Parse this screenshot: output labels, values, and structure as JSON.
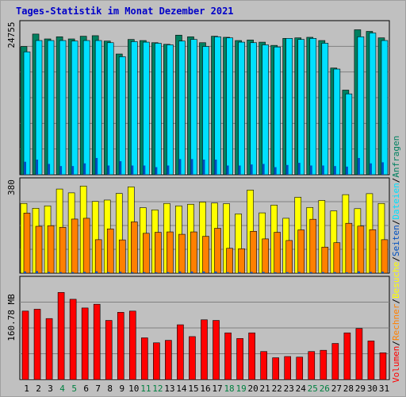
{
  "chart_data": {
    "type": "bar",
    "title": "Tages-Statistik im Monat Dezember 2021",
    "categories": [
      "1",
      "2",
      "3",
      "4",
      "5",
      "6",
      "7",
      "8",
      "9",
      "10",
      "11",
      "12",
      "13",
      "14",
      "15",
      "16",
      "17",
      "18",
      "19",
      "20",
      "21",
      "22",
      "23",
      "24",
      "25",
      "26",
      "27",
      "28",
      "29",
      "30",
      "31"
    ],
    "weekend_days": [
      "4",
      "5",
      "11",
      "12",
      "18",
      "19",
      "25",
      "26"
    ],
    "colors": {
      "background": "#c0c0c0",
      "title": "#0000c8",
      "weekday_label": "#000000",
      "weekend_label": "#008040",
      "anfragen": "#008060",
      "dateien": "#00e0ff",
      "seiten": "#0050c0",
      "besuche": "#ffff00",
      "rechner": "#ff8000",
      "volumen": "#ff0000"
    },
    "panels": [
      {
        "id": "top",
        "max_label": "24755",
        "ymax": 28000,
        "series": [
          {
            "name": "Anfragen",
            "values": [
              23800,
              26100,
              25200,
              25600,
              25200,
              25700,
              25800,
              24800,
              22400,
              25100,
              24900,
              24500,
              24200,
              25900,
              25600,
              24500,
              25700,
              25500,
              24900,
              25000,
              24600,
              24000,
              25300,
              25400,
              25500,
              24900,
              19800,
              15700,
              26900,
              26600,
              25400
            ]
          },
          {
            "name": "Dateien",
            "values": [
              22800,
              24900,
              24900,
              24900,
              24800,
              24900,
              24900,
              24500,
              21900,
              24700,
              24600,
              24400,
              24100,
              24800,
              25100,
              23800,
              25600,
              25400,
              24600,
              24500,
              24100,
              23700,
              25300,
              25100,
              25300,
              24400,
              19600,
              15000,
              25600,
              26300,
              24900
            ]
          },
          {
            "name": "Seiten",
            "values": [
              2400,
              2800,
              2000,
              1600,
              1600,
              2100,
              3100,
              1700,
              2500,
              1700,
              1700,
              1400,
              1700,
              2900,
              2900,
              2800,
              2800,
              1700,
              1700,
              1900,
              2000,
              1400,
              1800,
              2200,
              1700,
              1700,
              1600,
              1500,
              3100,
              2100,
              2300
            ]
          }
        ]
      },
      {
        "id": "mid",
        "max_label": "380",
        "ymax": 460,
        "series": [
          {
            "name": "Besuche",
            "values": [
              348,
              324,
              336,
              420,
              401,
              435,
              358,
              365,
              398,
              431,
              327,
              316,
              348,
              336,
              344,
              355,
              350,
              347,
              296,
              415,
              301,
              340,
              274,
              379,
              328,
              363,
              311,
              392,
              322,
              397,
              348
            ]
          },
          {
            "name": "Rechner",
            "values": [
              300,
              234,
              237,
              229,
              270,
              274,
              167,
              221,
              166,
              256,
              199,
              204,
              206,
              194,
              206,
              184,
              224,
              124,
              122,
              209,
              171,
              204,
              163,
              216,
              269,
              130,
              152,
              249,
              235,
              217,
              167
            ]
          },
          {
            "name": "Seiten",
            "values": [
              8,
              10,
              6,
              5,
              5,
              6,
              9,
              5,
              7,
              5,
              5,
              4,
              5,
              8,
              8,
              8,
              8,
              5,
              5,
              6,
              6,
              4,
              5,
              6,
              5,
              5,
              5,
              4,
              9,
              6,
              7
            ]
          }
        ]
      },
      {
        "id": "bottom",
        "max_label": "160.78 MB",
        "ymax": 160.78,
        "series": [
          {
            "name": "Volumen",
            "values": [
              110,
              113,
              98,
              140,
              129,
              115,
              121,
              95,
              108,
              110,
              67,
              59,
              63,
              88,
              69,
              96,
              95,
              75,
              66,
              75,
              45,
              35,
              37,
              36,
              45,
              47,
              58,
              75,
              82,
              62,
              43
            ]
          }
        ]
      }
    ],
    "legend": [
      "Volumen",
      "Rechner",
      "Besuche",
      "Seiten",
      "Dateien",
      "Anfragen"
    ],
    "legend_separator": "/"
  }
}
